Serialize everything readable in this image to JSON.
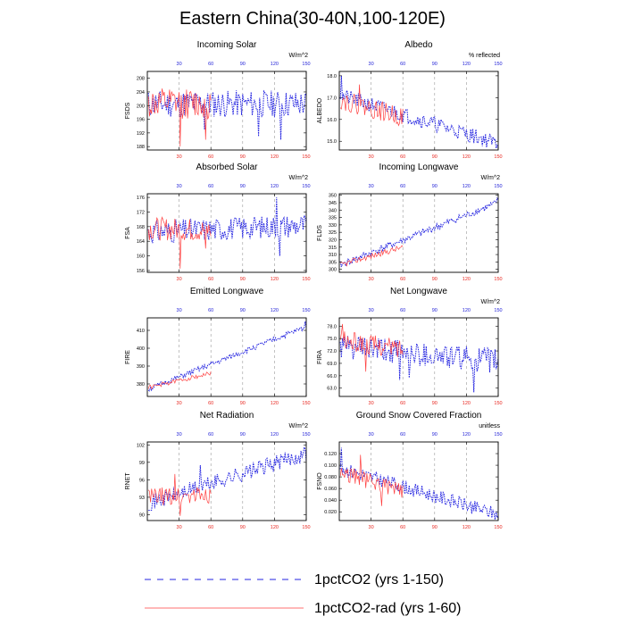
{
  "title": "Eastern China(30-40N,100-120E)",
  "colors": {
    "series_150": "#2323e0",
    "series_60": "#ff4040",
    "xtick_bottom": "#e8261f",
    "xtick_top": "#1b1bd6",
    "gridline": "#999999"
  },
  "legend": [
    {
      "label": "1pctCO2 (yrs 1-150)",
      "style": "dashed",
      "color": "#2323e0"
    },
    {
      "label": "1pctCO2-rad (yrs 1-60)",
      "style": "solid",
      "color": "#ff4040"
    }
  ],
  "chart_data": [
    {
      "type": "line",
      "title": "Incoming Solar",
      "ylabel": "FSDS",
      "units": "W/m^2",
      "xlim": [
        0,
        150
      ],
      "ylim": [
        187,
        210
      ],
      "yticks": [
        188,
        192,
        196,
        200,
        204,
        208
      ],
      "xticks": [
        30,
        60,
        90,
        120,
        150
      ],
      "gridlines_x": [
        30,
        60,
        90,
        120
      ],
      "series": [
        {
          "key": "s150",
          "start": 200.5,
          "end": 200.5,
          "amp": 4.0,
          "seed": 11,
          "dips": [
            [
              54,
              193
            ],
            [
              105,
              191
            ],
            [
              126,
              190
            ]
          ]
        },
        {
          "key": "s60",
          "start": 200.5,
          "end": 200.5,
          "amp": 4.5,
          "seed": 12,
          "dips": [
            [
              31,
              188
            ],
            [
              55,
              190
            ]
          ]
        }
      ]
    },
    {
      "type": "line",
      "title": "Albedo",
      "ylabel": "ALBEDO",
      "units": "% reflected",
      "xlim": [
        0,
        150
      ],
      "ylim": [
        14.6,
        18.2
      ],
      "yticks": [
        15.0,
        16.0,
        17.0,
        18.0
      ],
      "ytick_decimals": 1,
      "xticks": [
        30,
        60,
        90,
        120,
        150
      ],
      "gridlines_x": [
        30,
        60,
        90,
        120
      ],
      "series": [
        {
          "key": "s150",
          "start": 17.1,
          "end": 14.9,
          "amp": 0.35,
          "seed": 21,
          "dips": [
            [
              2,
              18.0
            ]
          ]
        },
        {
          "key": "s60",
          "start": 16.9,
          "end": 16.1,
          "amp": 0.45,
          "seed": 22,
          "dips": [
            [
              19,
              17.6
            ]
          ]
        }
      ]
    },
    {
      "type": "line",
      "title": "Absorbed Solar",
      "ylabel": "FSA",
      "units": "W/m^2",
      "xlim": [
        0,
        150
      ],
      "ylim": [
        155.5,
        177
      ],
      "yticks": [
        156,
        160,
        164,
        168,
        172,
        176
      ],
      "xticks": [
        30,
        60,
        90,
        120,
        150
      ],
      "gridlines_x": [
        30,
        60,
        90,
        120
      ],
      "series": [
        {
          "key": "s150",
          "start": 166.5,
          "end": 168.5,
          "amp": 3.2,
          "seed": 31,
          "dips": [
            [
              125,
              160
            ],
            [
              122,
              176
            ]
          ]
        },
        {
          "key": "s60",
          "start": 167.5,
          "end": 167.0,
          "amp": 3.2,
          "seed": 32,
          "dips": [
            [
              31,
              156.5
            ],
            [
              55,
              162
            ]
          ]
        }
      ]
    },
    {
      "type": "line",
      "title": "Incoming Longwave",
      "ylabel": "FLDS",
      "units": "W/m^2",
      "xlim": [
        0,
        150
      ],
      "ylim": [
        298,
        351
      ],
      "yticks": [
        300,
        305,
        310,
        315,
        320,
        325,
        330,
        335,
        340,
        345,
        350
      ],
      "xticks": [
        30,
        60,
        90,
        120,
        150
      ],
      "gridlines_x": [
        30,
        60,
        90,
        120
      ],
      "series": [
        {
          "key": "s150",
          "start": 303,
          "end": 345,
          "amp": 2.5,
          "seed": 41,
          "dips": [
            [
              149,
              348
            ]
          ]
        },
        {
          "key": "s60",
          "start": 303,
          "end": 315,
          "amp": 2.0,
          "seed": 42,
          "dips": []
        }
      ]
    },
    {
      "type": "line",
      "title": "Emitted Longwave",
      "ylabel": "FIRE",
      "units": "",
      "xlim": [
        0,
        150
      ],
      "ylim": [
        373,
        417
      ],
      "yticks": [
        380,
        390,
        400,
        410
      ],
      "xticks": [
        30,
        60,
        90,
        120,
        150
      ],
      "gridlines_x": [
        30,
        60,
        90,
        120
      ],
      "series": [
        {
          "key": "s150",
          "start": 377,
          "end": 412,
          "amp": 1.5,
          "seed": 51,
          "dips": [
            [
              149,
              415
            ]
          ]
        },
        {
          "key": "s60",
          "start": 378,
          "end": 386,
          "amp": 1.2,
          "seed": 52,
          "dips": []
        }
      ]
    },
    {
      "type": "line",
      "title": "Net Longwave",
      "ylabel": "FIRA",
      "units": "W/m^2",
      "xlim": [
        0,
        150
      ],
      "ylim": [
        61,
        80
      ],
      "yticks": [
        63.0,
        66.0,
        69.0,
        72.0,
        75.0,
        78.0
      ],
      "ytick_decimals": 1,
      "xticks": [
        30,
        60,
        90,
        120,
        150
      ],
      "gridlines_x": [
        30,
        60,
        90,
        120
      ],
      "series": [
        {
          "key": "s150",
          "start": 73,
          "end": 69.5,
          "amp": 3.0,
          "seed": 61,
          "dips": [
            [
              127,
              62
            ],
            [
              57,
              65
            ],
            [
              66,
              65.5
            ]
          ]
        },
        {
          "key": "s60",
          "start": 74.5,
          "end": 72.5,
          "amp": 2.4,
          "seed": 62,
          "dips": [
            [
              3,
              78.5
            ],
            [
              25,
              67
            ]
          ]
        }
      ]
    },
    {
      "type": "line",
      "title": "Net Radiation",
      "ylabel": "RNET",
      "units": "W/m^2",
      "xlim": [
        0,
        150
      ],
      "ylim": [
        89,
        102.5
      ],
      "yticks": [
        90,
        93,
        96,
        99,
        102
      ],
      "xticks": [
        30,
        60,
        90,
        120,
        150
      ],
      "gridlines_x": [
        30,
        60,
        90,
        120
      ],
      "series": [
        {
          "key": "s150",
          "start": 92.0,
          "end": 100.5,
          "amp": 1.4,
          "seed": 71,
          "dips": [
            [
              50,
              98.5
            ]
          ]
        },
        {
          "key": "s60",
          "start": 93.0,
          "end": 93.5,
          "amp": 1.6,
          "seed": 72,
          "dips": [
            [
              31,
              89.8
            ],
            [
              26,
              97
            ]
          ]
        }
      ]
    },
    {
      "type": "line",
      "title": "Ground Snow Covered Fraction",
      "ylabel": "FSNO",
      "units": "unitless",
      "xlim": [
        0,
        150
      ],
      "ylim": [
        0.005,
        0.14
      ],
      "yticks": [
        0.02,
        0.04,
        0.06,
        0.08,
        0.1,
        0.12
      ],
      "ytick_decimals": 3,
      "xticks": [
        30,
        60,
        90,
        120,
        150
      ],
      "gridlines_x": [
        30,
        60,
        90,
        120
      ],
      "series": [
        {
          "key": "s150",
          "start": 0.095,
          "end": 0.015,
          "amp": 0.012,
          "seed": 81,
          "dips": [
            [
              2,
              0.13
            ]
          ]
        },
        {
          "key": "s60",
          "start": 0.088,
          "end": 0.055,
          "amp": 0.014,
          "seed": 82,
          "dips": [
            [
              20,
              0.118
            ],
            [
              40,
              0.03
            ]
          ]
        }
      ]
    }
  ]
}
